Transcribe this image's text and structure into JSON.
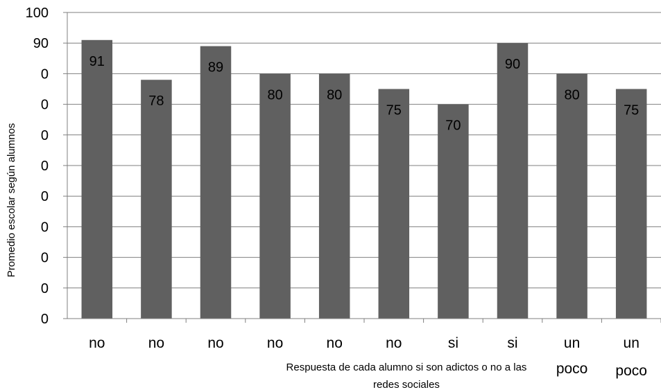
{
  "chart_data": {
    "type": "bar",
    "categories": [
      "no",
      "no",
      "no",
      "no",
      "no",
      "no",
      "si",
      "si",
      "un poco",
      "un poco"
    ],
    "values": [
      91,
      78,
      89,
      80,
      80,
      75,
      70,
      90,
      80,
      75
    ],
    "ylabel": "Promedio escolar según alumnos",
    "xlabel": "Respuesta de cada alumno si son adictos o no a las redes sociales",
    "xlabel_lines": [
      "Respuesta de cada alumno si son adictos o no a las",
      "redes sociales"
    ],
    "ylim": [
      0,
      100
    ],
    "yticks": [
      "0",
      "0",
      "0",
      "0",
      "0",
      "0",
      "0",
      "0",
      "0",
      "90",
      "100"
    ],
    "grid": true,
    "bar_color": "#606060",
    "grid_color": "#7f7f7f"
  }
}
